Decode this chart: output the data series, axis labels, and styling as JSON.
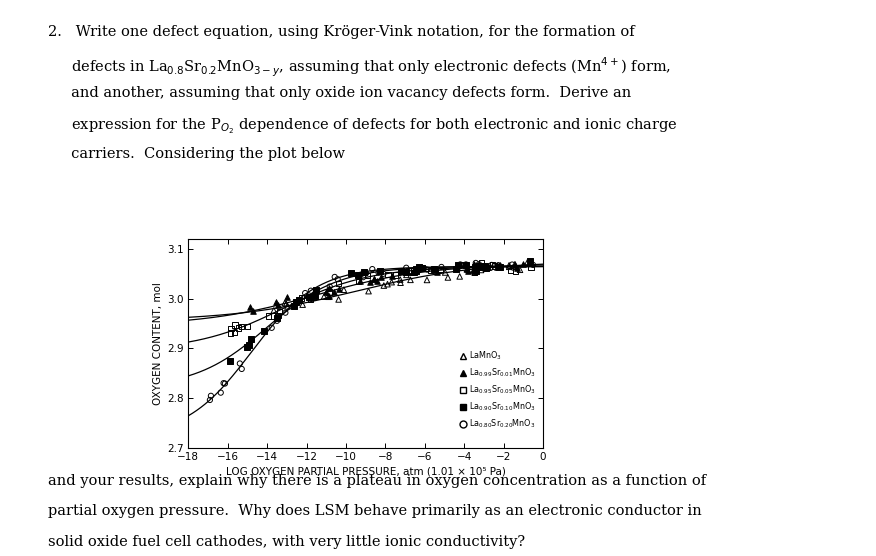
{
  "line1": "2.   Write one defect equation, using Kröger-Vink notation, for the formation of",
  "line2": "     defects in La$_{0.8}$Sr$_{0.2}$MnO$_{3-y}$, assuming that only electronic defects (Mn$^{4+}$) form,",
  "line3": "     and another, assuming that only oxide ion vacancy defects form.  Derive an",
  "line4": "     expression for the P$_{O_2}$ dependence of defects for both electronic and ionic charge",
  "line5": "     carriers.  Considering the plot below",
  "bottom1": "and your results, explain why there is a plateau in oxygen concentration as a function of",
  "bottom2": "partial oxygen pressure.  Why does LSM behave primarily as an electronic conductor in",
  "bottom3": "solid oxide fuel cell cathodes, with very little ionic conductivity?",
  "plot_ylabel": "OXYGEN CONTENT, mol",
  "plot_xlabel": "LOG OXYGEN PARTIAL PRESSURE, atm (1.01 × 10⁵ Pa)",
  "plot_yticks": [
    2.7,
    2.8,
    2.9,
    3.0,
    3.1
  ],
  "plot_xticks": [
    -18,
    -16,
    -14,
    -12,
    -10,
    -8,
    -6,
    -4,
    -2,
    0
  ],
  "plot_xlim": [
    -18,
    0
  ],
  "plot_ylim": [
    2.7,
    3.12
  ],
  "legend_labels": [
    "LaMnO$_3$",
    "La$_{0.99}$Sr$_{0.01}$MnO$_3$",
    "La$_{0.95}$Sr$_{0.05}$MnO$_3$",
    "La$_{0.90}$Sr$_{0.10}$MnO$_3$",
    "La$_{0.80}$Sr$_{0.20}$MnO$_3$"
  ],
  "background_color": "#ffffff",
  "text_color": "#000000",
  "font_size_body": 10.5,
  "font_size_plot": 7.5
}
